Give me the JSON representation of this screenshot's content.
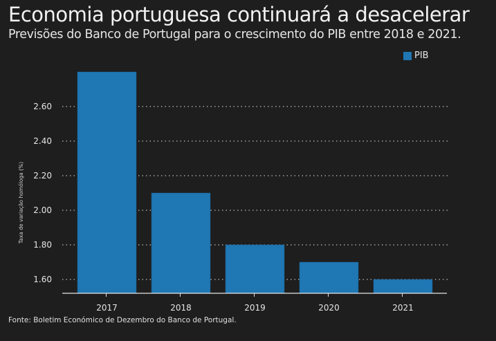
{
  "header": {
    "title": "Economia portuguesa continuará a desacelerar",
    "subtitle": "Previsões do Banco de Portugal para o crescimento do PIB entre 2018 e 2021."
  },
  "footer": {
    "source": "Fonte: Boletim Económico de Dezembro do Banco de Portugal."
  },
  "colors": {
    "background": "#1e1e1e",
    "bar": "#1f77b4",
    "grid": "#bdbdbd",
    "axis": "#e6e6e6"
  },
  "chart_data": {
    "type": "bar",
    "title": "Economia portuguesa continuará a desacelerar",
    "subtitle": "Previsões do Banco de Portugal para o crescimento do PIB entre 2018 e 2021.",
    "xlabel": "",
    "ylabel": "Taxa de variação homóloga (%)",
    "categories": [
      "2017",
      "2018",
      "2019",
      "2020",
      "2021"
    ],
    "series": [
      {
        "name": "PIB",
        "values": [
          2.8,
          2.1,
          1.8,
          1.7,
          1.6
        ]
      }
    ],
    "ylim": [
      1.52,
      2.8
    ],
    "yticks": [
      1.6,
      1.8,
      2.0,
      2.2,
      2.4,
      2.6
    ],
    "ytick_labels": [
      "1.60",
      "1.80",
      "2.00",
      "2.20",
      "2.40",
      "2.60"
    ],
    "grid": "horizontal dotted",
    "legend": {
      "entries": [
        "PIB"
      ],
      "placement": "top-right"
    }
  }
}
